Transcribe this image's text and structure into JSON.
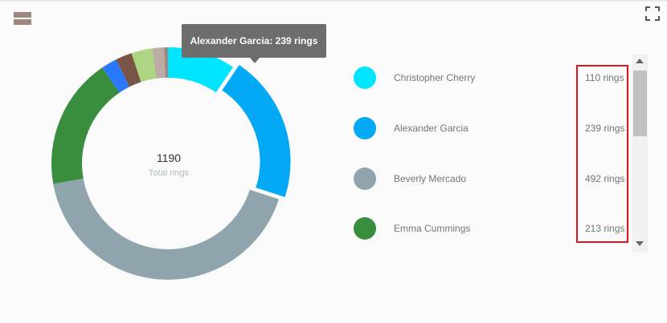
{
  "icons": {
    "menu": "menu-icon",
    "fullscreen": "fullscreen-icon"
  },
  "center": {
    "total": "1190",
    "label": "Total rings"
  },
  "tooltip": {
    "text": "Alexander Garcia: 239 rings"
  },
  "legend": {
    "items": [
      {
        "name": "Christopher Cherry",
        "value": "110 rings",
        "color": "#00e5ff"
      },
      {
        "name": "Alexander Garcia",
        "value": "239 rings",
        "color": "#03a9f4"
      },
      {
        "name": "Beverly Mercado",
        "value": "492 rings",
        "color": "#90a4ae"
      },
      {
        "name": "Emma Cummings",
        "value": "213 rings",
        "color": "#388e3c"
      }
    ]
  },
  "chart_data": {
    "type": "pie",
    "variant": "donut",
    "unit": "rings",
    "total": 1190,
    "slices": [
      {
        "name": "Christopher Cherry",
        "value": 110,
        "color": "#00e5ff"
      },
      {
        "name": "Alexander Garcia",
        "value": 239,
        "color": "#03a9f4",
        "highlighted": true
      },
      {
        "name": "Beverly Mercado",
        "value": 492,
        "color": "#90a4ae"
      },
      {
        "name": "Emma Cummings",
        "value": 213,
        "color": "#388e3c"
      },
      {
        "name": "",
        "value": 25,
        "color": "#2979ff"
      },
      {
        "name": "",
        "value": 27,
        "color": "#795548"
      },
      {
        "name": "",
        "value": 34,
        "color": "#aed581"
      },
      {
        "name": "",
        "value": 19,
        "color": "#bcaaa4"
      },
      {
        "name": "",
        "value": 6,
        "color": "#a1887f"
      }
    ]
  }
}
